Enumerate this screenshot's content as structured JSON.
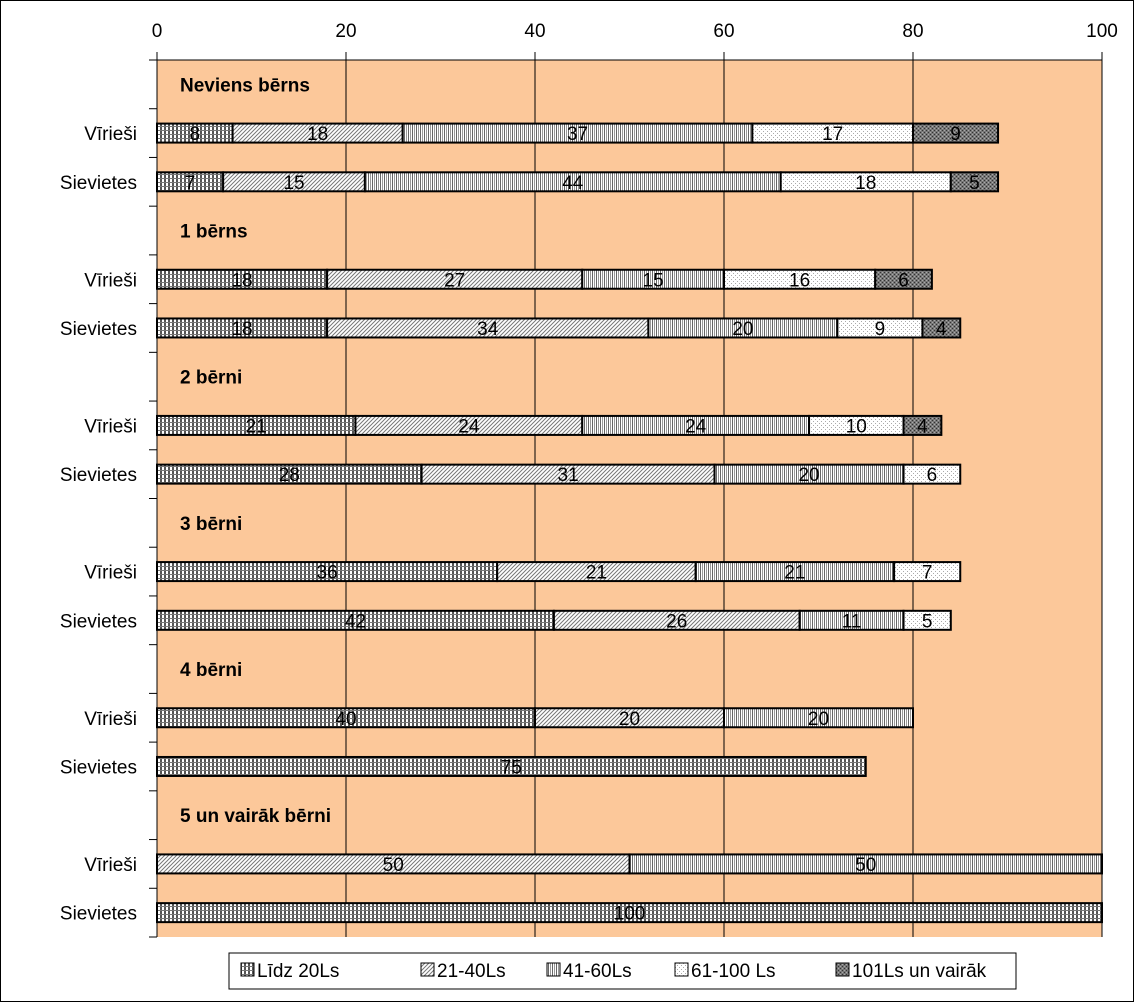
{
  "chart_data": {
    "type": "bar",
    "orientation": "horizontal",
    "stacked": true,
    "xlim": [
      0,
      100
    ],
    "x_ticks": [
      0,
      20,
      40,
      60,
      80,
      100
    ],
    "grid": true,
    "legend_position": "bottom",
    "plot_background": "#fcc89a",
    "legend": [
      "Līdz 20Ls",
      "21-40Ls",
      "41-60Ls",
      "61-100 Ls",
      "101Ls un vairāk"
    ],
    "groups": [
      {
        "label": "Neviens bērns",
        "rows": [
          {
            "label": "Vīrieši",
            "values": [
              8,
              18,
              37,
              17,
              9
            ]
          },
          {
            "label": "Sievietes",
            "values": [
              7,
              15,
              44,
              18,
              5
            ]
          }
        ]
      },
      {
        "label": "1 bērns",
        "rows": [
          {
            "label": "Vīrieši",
            "values": [
              18,
              27,
              15,
              16,
              6
            ]
          },
          {
            "label": "Sievietes",
            "values": [
              18,
              34,
              20,
              9,
              4
            ]
          }
        ]
      },
      {
        "label": "2 bērni",
        "rows": [
          {
            "label": "Vīrieši",
            "values": [
              21,
              24,
              24,
              10,
              4
            ]
          },
          {
            "label": "Sievietes",
            "values": [
              28,
              31,
              20,
              6,
              null
            ]
          }
        ]
      },
      {
        "label": "3 bērni",
        "rows": [
          {
            "label": "Vīrieši",
            "values": [
              36,
              21,
              21,
              7,
              null
            ]
          },
          {
            "label": "Sievietes",
            "values": [
              42,
              26,
              11,
              5,
              null
            ]
          }
        ]
      },
      {
        "label": "4 bērni",
        "rows": [
          {
            "label": "Vīrieši",
            "values": [
              40,
              20,
              20,
              null,
              null
            ]
          },
          {
            "label": "Sievietes",
            "values": [
              75,
              null,
              null,
              null,
              null
            ]
          }
        ]
      },
      {
        "label": "5 un vairāk bērni",
        "rows": [
          {
            "label": "Vīrieši",
            "values": [
              null,
              50,
              50,
              null,
              null
            ]
          },
          {
            "label": "Sievietes",
            "values": [
              100,
              null,
              null,
              null,
              null
            ]
          }
        ]
      }
    ]
  }
}
